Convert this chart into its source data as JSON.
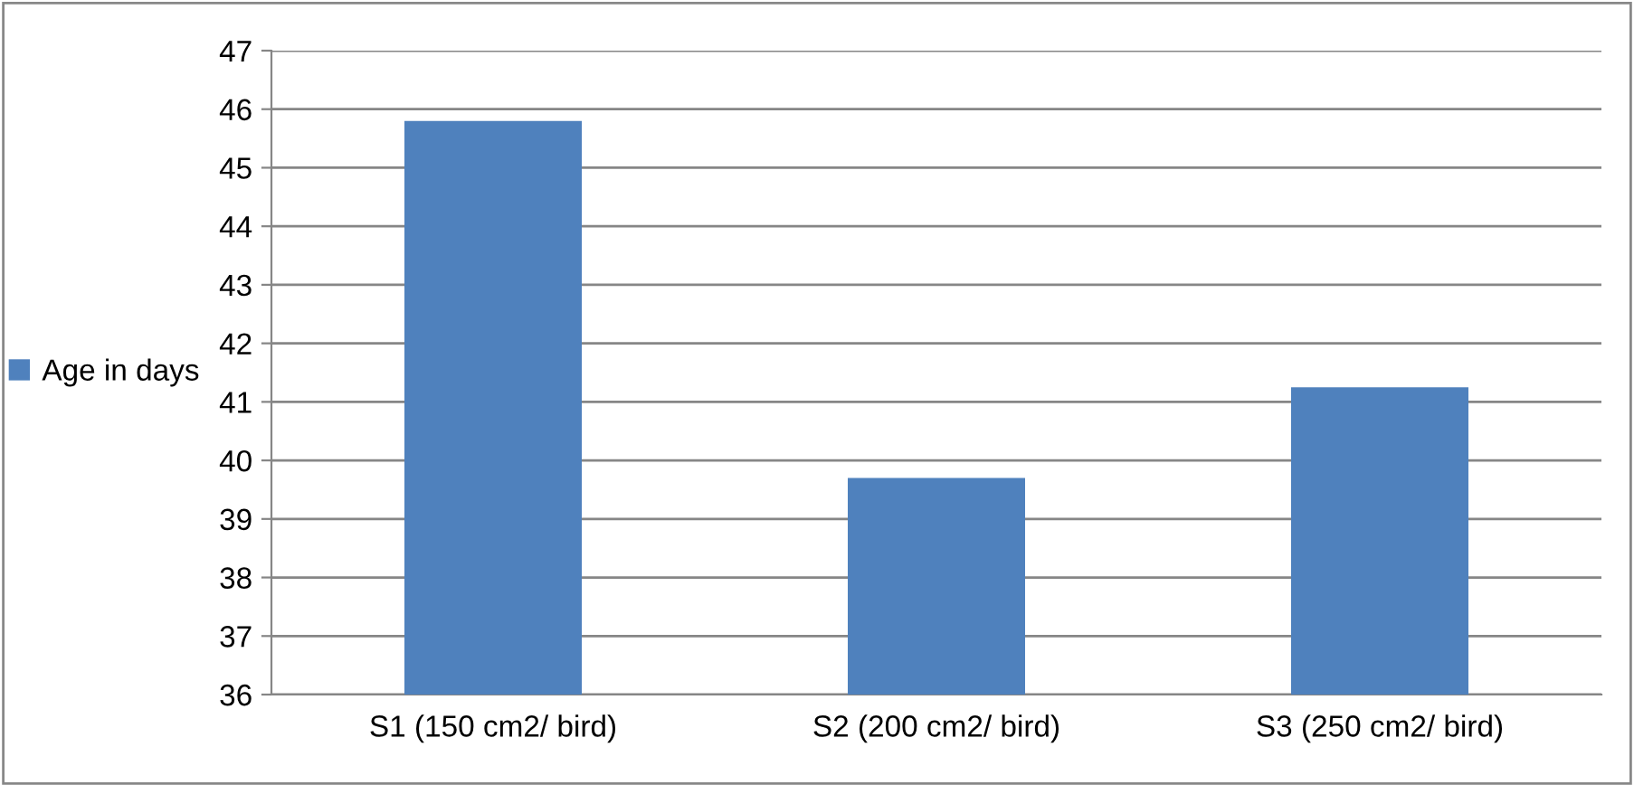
{
  "chart_data": {
    "type": "bar",
    "categories": [
      "S1 (150 cm2/ bird)",
      "S2 (200 cm2/ bird)",
      "S3 (250 cm2/ bird)"
    ],
    "series": [
      {
        "name": "Age in days",
        "color": "#4f81bd",
        "values": [
          45.8,
          39.7,
          41.25
        ]
      }
    ],
    "ylim": [
      36,
      47
    ],
    "yticks": [
      36,
      37,
      38,
      39,
      40,
      41,
      42,
      43,
      44,
      45,
      46,
      47
    ],
    "grid": "y",
    "legend": "left"
  }
}
